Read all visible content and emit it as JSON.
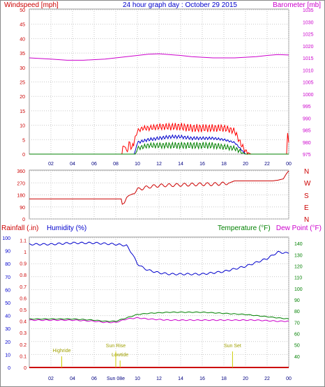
{
  "chart_data": [
    {
      "id": "wind-baro",
      "type": "line",
      "title": "24 hour graph day : October 29 2015",
      "left_axis_label": "Windspeed [mph]",
      "right_axis_label": "Barometer [mb]",
      "ylim_left": [
        0,
        50
      ],
      "ylim_right": [
        975,
        1035
      ],
      "left_ticks": [
        0,
        5,
        10,
        15,
        20,
        25,
        30,
        35,
        40,
        45,
        50
      ],
      "right_ticks": [
        975,
        980,
        985,
        990,
        995,
        1000,
        1005,
        1010,
        1015,
        1020,
        1025,
        1030,
        1035
      ],
      "x_ticks": [
        "02",
        "04",
        "06",
        "08",
        "10",
        "12",
        "14",
        "16",
        "18",
        "20",
        "22",
        "00"
      ],
      "xlim_hours": [
        0,
        24
      ],
      "colors": {
        "left_axis": "#cc0000",
        "right_axis": "#cc00cc",
        "title": "#0000cc"
      },
      "series": [
        {
          "name": "Barometer",
          "axis": "right",
          "color": "#cc00cc",
          "x": [
            0,
            2,
            3.5,
            5,
            7,
            9,
            11,
            12,
            14,
            15,
            17,
            19,
            21,
            22,
            23,
            24
          ],
          "y": [
            1015,
            1014.5,
            1014,
            1014,
            1014.5,
            1015.5,
            1016.5,
            1016.7,
            1016,
            1015.5,
            1015,
            1015,
            1015.5,
            1016,
            1016.4,
            1016.2
          ]
        },
        {
          "name": "Wind Gust",
          "axis": "left",
          "color": "#ff0000",
          "x": [
            0,
            8.5,
            8.8,
            9.0,
            9.3,
            9.5,
            9.8,
            10.0,
            10.5,
            11,
            12,
            13,
            14,
            15,
            16,
            17,
            18,
            19,
            19.5,
            20,
            20.5,
            23.8,
            23.9,
            24
          ],
          "y": [
            0,
            0,
            3,
            1,
            4,
            2,
            6,
            8,
            9,
            9,
            9.5,
            9.5,
            9.5,
            9,
            9,
            9,
            9,
            8,
            4,
            1,
            0,
            0,
            6,
            4
          ]
        },
        {
          "name": "Average Speed",
          "axis": "left",
          "color": "#0000cc",
          "x": [
            0,
            9.7,
            10,
            11,
            12,
            13,
            14,
            15,
            16,
            17,
            18,
            19,
            19.5,
            20,
            24
          ],
          "y": [
            0,
            0,
            4,
            5,
            5.5,
            6,
            6,
            5.5,
            5.5,
            5.5,
            5,
            4,
            2,
            0,
            0
          ]
        },
        {
          "name": "Wind Speed",
          "axis": "left",
          "color": "#008000",
          "x": [
            0,
            9.8,
            10,
            11,
            12,
            13,
            14,
            15,
            16,
            17,
            18,
            19,
            19.5,
            20,
            24
          ],
          "y": [
            0,
            0,
            2,
            3,
            3,
            3,
            3,
            3,
            3,
            3,
            2.5,
            2,
            1,
            0,
            0
          ]
        }
      ]
    },
    {
      "id": "wind-direction",
      "type": "line",
      "ylim": [
        0,
        360
      ],
      "y_ticks": [
        0,
        90,
        180,
        270,
        360
      ],
      "compass_labels": [
        "N",
        "W",
        "S",
        "E",
        "N"
      ],
      "xlim_hours": [
        0,
        24
      ],
      "colors": {
        "axis": "#cc0000"
      },
      "series": [
        {
          "name": "Wind Direction",
          "color": "#cc0000",
          "x": [
            0,
            8.5,
            8.6,
            8.8,
            9.0,
            9.2,
            9.5,
            10,
            11,
            12,
            14,
            16,
            17,
            18,
            18.5,
            19,
            22.5,
            23,
            23.5,
            23.8,
            24
          ],
          "y": [
            150,
            150,
            110,
            120,
            160,
            175,
            185,
            220,
            240,
            250,
            255,
            260,
            260,
            265,
            270,
            285,
            285,
            290,
            300,
            340,
            360
          ]
        }
      ]
    },
    {
      "id": "rain-hum-temp",
      "type": "line",
      "left_axis_label_1": "Rainfall (.in)",
      "left_axis_label_2": "Humidity (%)",
      "right_axis_label_1": "Temperature (°F)",
      "right_axis_label_2": "Dew Point (°F)",
      "humidity_ticks": [
        0,
        10,
        20,
        30,
        40,
        50,
        60,
        70,
        80,
        90,
        100
      ],
      "rain_ticks": [
        "0",
        "0.1",
        "0.2",
        "0.3",
        "0.4",
        "0.5",
        "0.6",
        "0.7",
        "0.8",
        "0.9",
        "1",
        "1.1"
      ],
      "temp_ticks": [
        40,
        50,
        60,
        70,
        80,
        90,
        100,
        110,
        120,
        130,
        140
      ],
      "ylim_humidity": [
        0,
        100
      ],
      "ylim_temp": [
        30,
        145
      ],
      "x_ticks": [
        "02",
        "04",
        "06",
        "Sun 08e",
        "10",
        "12",
        "14",
        "16",
        "18",
        "20",
        "22",
        "00"
      ],
      "xlim_hours": [
        0,
        24
      ],
      "annotations": [
        {
          "label": "Highride",
          "hour": 3
        },
        {
          "label": "Sun Rise",
          "hour": 8.0
        },
        {
          "label": "Lowtide",
          "hour": 8.4
        },
        {
          "label": "Sun Set",
          "hour": 18.8
        }
      ],
      "colors": {
        "rain": "#cc0000",
        "humidity": "#0000cc",
        "temperature": "#008000",
        "dewpoint": "#cc00cc",
        "annotation": "#cccc00"
      },
      "series": [
        {
          "name": "Humidity",
          "axis": "humidity",
          "color": "#0000cc",
          "x": [
            0,
            2,
            4,
            6,
            8,
            9,
            9.5,
            10,
            10.5,
            11,
            12,
            13,
            14,
            15,
            16,
            17,
            18,
            19,
            20,
            21,
            22,
            23,
            24
          ],
          "y": [
            95,
            95,
            96,
            96,
            95,
            94,
            88,
            80,
            77,
            75,
            73,
            72,
            72,
            72,
            72,
            73,
            74,
            76,
            78,
            81,
            84,
            89,
            88
          ]
        },
        {
          "name": "Temperature",
          "axis": "temp",
          "color": "#008000",
          "x": [
            0,
            2,
            4,
            6,
            7,
            8,
            9,
            10,
            11,
            12,
            13,
            14,
            15,
            16,
            17,
            18,
            19,
            20,
            21,
            22,
            23,
            24
          ],
          "y": [
            73,
            73,
            73,
            72,
            71,
            71,
            74,
            77,
            78,
            78.5,
            79,
            79,
            79,
            79,
            78.5,
            78,
            77.5,
            77,
            76,
            75,
            74,
            73
          ]
        },
        {
          "name": "Dew Point",
          "axis": "temp",
          "color": "#cc00cc",
          "x": [
            0,
            2,
            4,
            6,
            7,
            8,
            9,
            10,
            11,
            12,
            13,
            14,
            15,
            16,
            17,
            18,
            19,
            20,
            21,
            22,
            23,
            24
          ],
          "y": [
            72,
            72,
            72,
            71,
            70,
            70,
            73,
            74,
            73,
            72.5,
            72,
            72,
            72,
            72,
            72,
            72,
            72,
            72,
            72,
            71.5,
            71,
            71
          ]
        },
        {
          "name": "Rainfall",
          "axis": "rain",
          "color": "#cc0000",
          "x": [
            0,
            24
          ],
          "y": [
            0,
            0
          ]
        }
      ]
    }
  ]
}
